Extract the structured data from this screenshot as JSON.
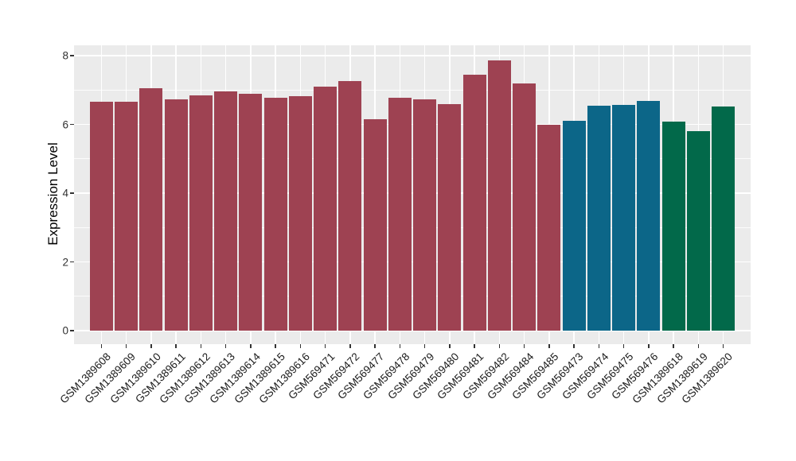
{
  "figure": {
    "background": "#FFFFFF",
    "panel_background": "#EBEBEB",
    "grid_color": "#FFFFFF",
    "tick_color": "#333333"
  },
  "chart_data": {
    "type": "bar",
    "title": "",
    "xlabel": "",
    "ylabel": "Expression Level",
    "ylim": [
      0,
      8.3
    ],
    "yticks": [
      0,
      2,
      4,
      6,
      8
    ],
    "yticks_minor": [
      1,
      3,
      5,
      7
    ],
    "grid": "white major and minor horizontal lines plus vertical line per category on grey panel",
    "legend_position": "none",
    "x_label_angle_deg": 45,
    "categories": [
      "GSM1389608",
      "GSM1389609",
      "GSM1389610",
      "GSM1389611",
      "GSM1389612",
      "GSM1389613",
      "GSM1389614",
      "GSM1389615",
      "GSM1389616",
      "GSM569471",
      "GSM569472",
      "GSM569477",
      "GSM569478",
      "GSM569479",
      "GSM569480",
      "GSM569481",
      "GSM569482",
      "GSM569484",
      "GSM569485",
      "GSM569473",
      "GSM569474",
      "GSM569475",
      "GSM569476",
      "GSM1389618",
      "GSM1389619",
      "GSM1389620"
    ],
    "values": [
      6.65,
      6.66,
      7.06,
      6.72,
      6.84,
      6.97,
      6.88,
      6.78,
      6.83,
      7.1,
      7.25,
      6.15,
      6.78,
      6.73,
      6.6,
      7.45,
      7.87,
      7.2,
      6.0,
      6.1,
      6.55,
      6.57,
      6.68,
      6.08,
      5.8,
      6.51
    ],
    "bar_groups": [
      "maroon",
      "maroon",
      "maroon",
      "maroon",
      "maroon",
      "maroon",
      "maroon",
      "maroon",
      "maroon",
      "maroon",
      "maroon",
      "maroon",
      "maroon",
      "maroon",
      "maroon",
      "maroon",
      "maroon",
      "maroon",
      "maroon",
      "teal",
      "teal",
      "teal",
      "teal",
      "green",
      "green",
      "green"
    ],
    "palette": {
      "maroon": "#9E4252",
      "teal": "#0C6688",
      "green": "#02694A"
    }
  }
}
